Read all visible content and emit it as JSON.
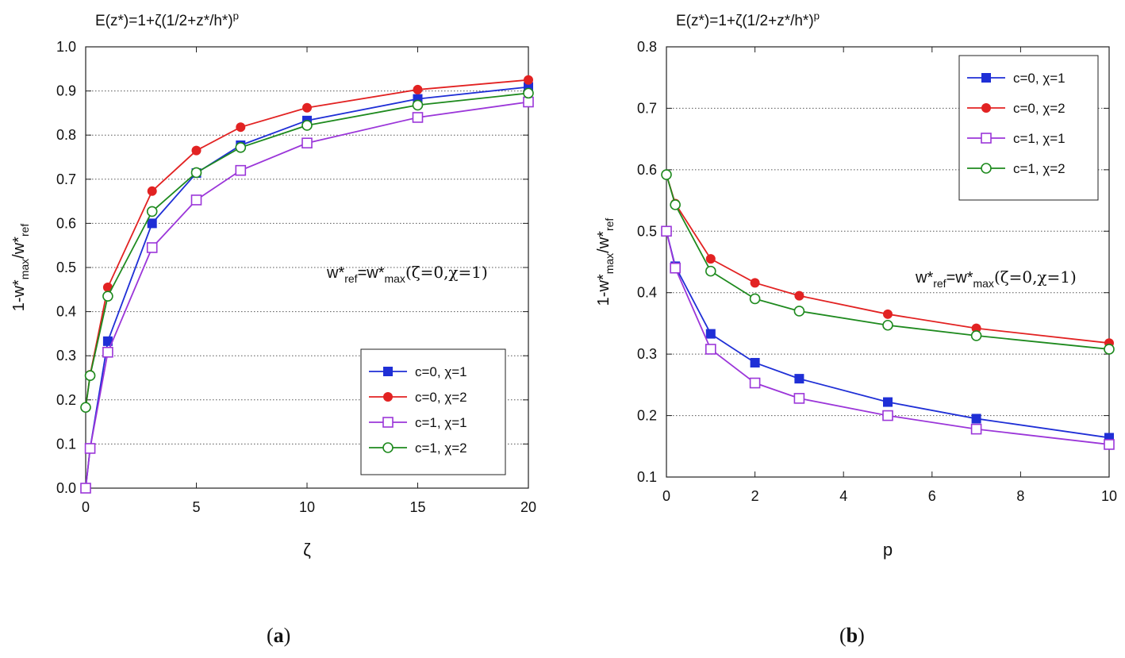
{
  "chart_data": [
    {
      "id": "a",
      "type": "line",
      "title": "E(z*)=1+ζ(1/2+z*/h*)ᵖ",
      "xlabel": "ζ",
      "ylabel": "1-w*max/w*ref",
      "xlim": [
        0,
        20
      ],
      "ylim": [
        0.0,
        1.0
      ],
      "xticks": [
        "0",
        "5",
        "10",
        "15",
        "20"
      ],
      "yticks": [
        "0.0",
        "0.1",
        "0.2",
        "0.3",
        "0.4",
        "0.5",
        "0.6",
        "0.7",
        "0.8",
        "0.9",
        "1.0"
      ],
      "grid": "horizontal dotted",
      "legend_position": "bottom-right",
      "annotation": "w*ref=w*max(ζ=0,χ=1)",
      "x": [
        0,
        0.2,
        1,
        3,
        5,
        7,
        10,
        15,
        20
      ],
      "series": [
        {
          "name": "c=0, χ=1",
          "color": "#1f2fd6",
          "marker": "square-filled",
          "values": [
            0.0,
            0.09,
            0.333,
            0.6,
            0.714,
            0.777,
            0.833,
            0.882,
            0.909
          ]
        },
        {
          "name": "c=0, χ=2",
          "color": "#e22222",
          "marker": "circle-filled",
          "values": [
            0.183,
            0.257,
            0.455,
            0.673,
            0.765,
            0.818,
            0.862,
            0.903,
            0.925
          ]
        },
        {
          "name": "c=1, χ=1",
          "color": "#9b36d9",
          "marker": "square-open",
          "values": [
            0.0,
            0.09,
            0.308,
            0.545,
            0.653,
            0.72,
            0.782,
            0.84,
            0.875
          ]
        },
        {
          "name": "c=1, χ=2",
          "color": "#1e8a1e",
          "marker": "circle-open",
          "values": [
            0.183,
            0.255,
            0.435,
            0.627,
            0.715,
            0.772,
            0.822,
            0.868,
            0.895
          ]
        }
      ],
      "caption": "a"
    },
    {
      "id": "b",
      "type": "line",
      "title": "E(z*)=1+ζ(1/2+z*/h*)ᵖ",
      "xlabel": "p",
      "ylabel": "1-w*max/w*ref",
      "xlim": [
        0,
        10
      ],
      "ylim": [
        0.1,
        0.8
      ],
      "xticks": [
        "0",
        "2",
        "4",
        "6",
        "8",
        "10"
      ],
      "yticks": [
        "0.1",
        "0.2",
        "0.3",
        "0.4",
        "0.5",
        "0.6",
        "0.7",
        "0.8"
      ],
      "grid": "horizontal dotted",
      "legend_position": "top-right",
      "annotation": "w*ref=w*max(ζ=0,χ=1)",
      "x": [
        0,
        0.2,
        1,
        2,
        3,
        5,
        7,
        10
      ],
      "series": [
        {
          "name": "c=0, χ=1",
          "color": "#1f2fd6",
          "marker": "square-filled",
          "values": [
            0.5,
            0.443,
            0.333,
            0.286,
            0.26,
            0.222,
            0.195,
            0.164
          ]
        },
        {
          "name": "c=0, χ=2",
          "color": "#e22222",
          "marker": "circle-filled",
          "values": [
            0.592,
            0.545,
            0.455,
            0.416,
            0.395,
            0.365,
            0.342,
            0.318
          ]
        },
        {
          "name": "c=1, χ=1",
          "color": "#9b36d9",
          "marker": "square-open",
          "values": [
            0.5,
            0.44,
            0.308,
            0.253,
            0.228,
            0.2,
            0.178,
            0.153
          ]
        },
        {
          "name": "c=1, χ=2",
          "color": "#1e8a1e",
          "marker": "circle-open",
          "values": [
            0.592,
            0.543,
            0.435,
            0.39,
            0.37,
            0.347,
            0.33,
            0.308
          ]
        }
      ],
      "caption": "b"
    }
  ]
}
